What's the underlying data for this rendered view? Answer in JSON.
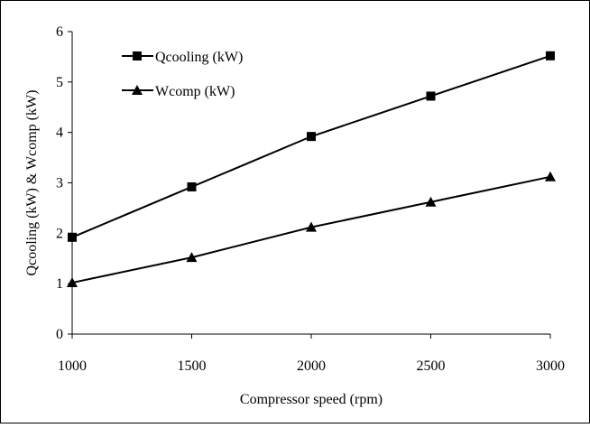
{
  "chart_data": {
    "type": "line",
    "xlabel": "Compressor speed (rpm)",
    "ylabel": "Qcooling (kW) & Wcomp (kW)",
    "x": [
      1000,
      1500,
      2000,
      2500,
      3000
    ],
    "xlim": [
      1000,
      3000
    ],
    "ylim": [
      0,
      6
    ],
    "x_ticks": [
      "1000",
      "1500",
      "2000",
      "2500",
      "3000"
    ],
    "y_ticks": [
      "0",
      "1",
      "2",
      "3",
      "4",
      "5",
      "6"
    ],
    "grid": false,
    "legend_position": "top-left",
    "series": [
      {
        "name": "Qcooling (kW)",
        "marker": "square",
        "values": [
          1.92,
          2.92,
          3.92,
          4.72,
          5.52
        ]
      },
      {
        "name": "Wcomp (kW)",
        "marker": "triangle",
        "values": [
          1.02,
          1.52,
          2.12,
          2.62,
          3.12
        ]
      }
    ]
  }
}
